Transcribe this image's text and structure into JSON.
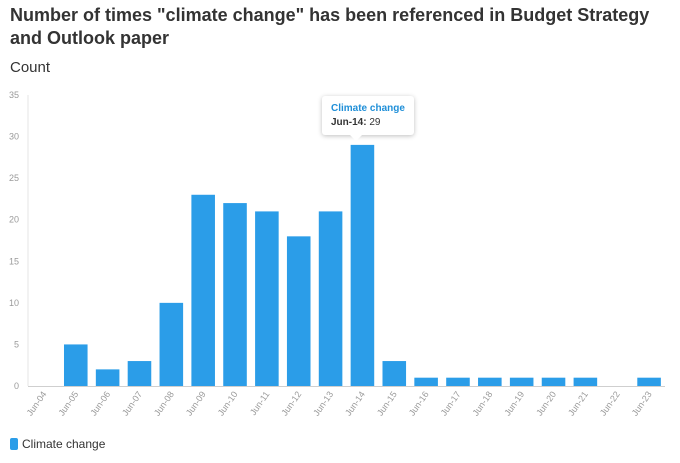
{
  "chart_data": {
    "type": "bar",
    "title": "Number of times \"climate change\" has been referenced in Budget Strategy and Outlook paper",
    "ylabel": "Count",
    "xlabel": "",
    "ylim": [
      0,
      35
    ],
    "yticks": [
      0,
      5,
      10,
      15,
      20,
      25,
      30,
      35
    ],
    "categories": [
      "Jun-04",
      "Jun-05",
      "Jun-06",
      "Jun-07",
      "Jun-08",
      "Jun-09",
      "Jun-10",
      "Jun-11",
      "Jun-12",
      "Jun-13",
      "Jun-14",
      "Jun-15",
      "Jun-16",
      "Jun-17",
      "Jun-18",
      "Jun-19",
      "Jun-20",
      "Jun-21",
      "Jun-22",
      "Jun-23"
    ],
    "series": [
      {
        "name": "Climate change",
        "color": "#2b9de8",
        "values": [
          0,
          5,
          2,
          3,
          10,
          23,
          22,
          21,
          18,
          21,
          29,
          3,
          1,
          1,
          1,
          1,
          1,
          1,
          0,
          1
        ]
      }
    ],
    "legend": {
      "position": "bottom-left",
      "entries": [
        "Climate change"
      ]
    },
    "tooltip": {
      "series": "Climate change",
      "label": "Jun-14:",
      "value": "29"
    }
  }
}
